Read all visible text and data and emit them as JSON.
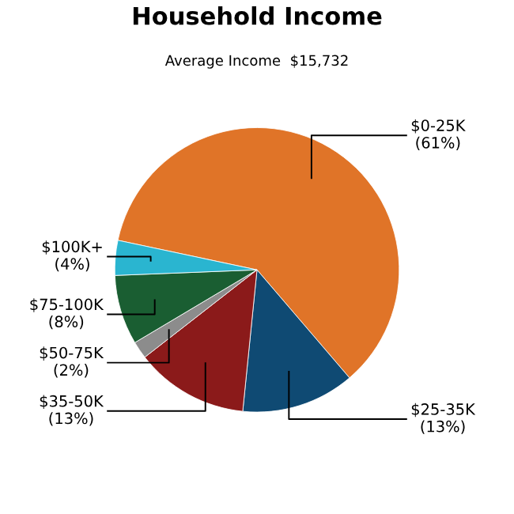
{
  "chart_data": {
    "type": "pie",
    "title": "Household Income",
    "subtitle": "Average Income  $15,732",
    "categories": [
      "$0-25K",
      "$25-35K",
      "$35-50K",
      "$50-75K",
      "$75-100K",
      "$100K+"
    ],
    "values": [
      61,
      13,
      13,
      2,
      8,
      4
    ],
    "value_labels": [
      "(61%)",
      "(13%)",
      "(13%)",
      "(2%)",
      "(8%)",
      "(4%)"
    ],
    "colors": [
      "#e07428",
      "#0f4a73",
      "#8b1a1a",
      "#8c8c8c",
      "#1a5e32",
      "#2ab5d0"
    ],
    "legend": false
  }
}
